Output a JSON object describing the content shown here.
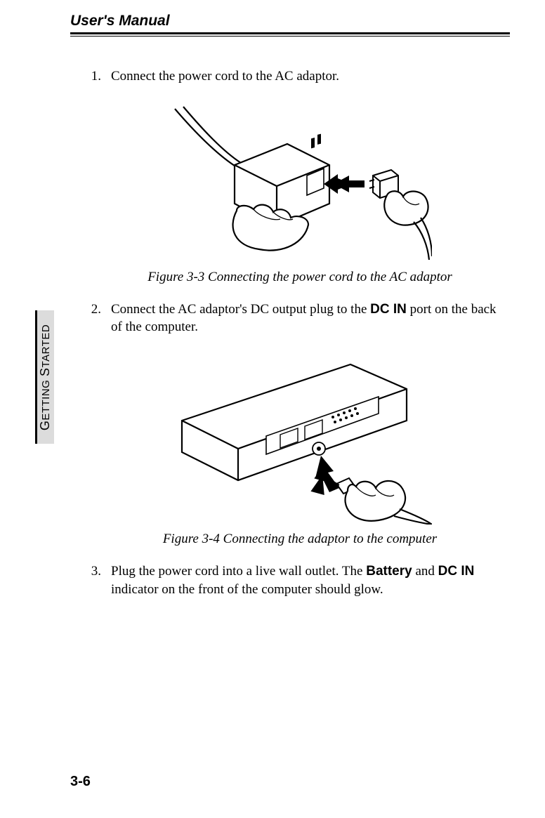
{
  "header": {
    "title": "User's Manual"
  },
  "side_tab": {
    "label_html": "<span class='cap'>G</span>ETTING <span class='cap'>S</span>TARTED"
  },
  "steps": {
    "s1": {
      "num": "1.",
      "text": "Connect the power cord to the AC adaptor."
    },
    "s2": {
      "num": "2.",
      "text_html": "Connect the AC adaptor's DC output plug to the <b>DC IN</b> port on the back of the computer."
    },
    "s3": {
      "num": "3.",
      "text_html": "Plug the power cord into a live wall outlet. The <b>Battery</b> and <b>DC IN</b> indicator on the front of the computer should glow."
    }
  },
  "figures": {
    "f1": {
      "caption": "Figure 3-3  Connecting the power cord to the AC adaptor"
    },
    "f2": {
      "caption": "Figure 3-4  Connecting the adaptor to the computer"
    }
  },
  "page_number": "3-6",
  "colors": {
    "tab_bg": "#dcdcdc",
    "line": "#000000"
  }
}
